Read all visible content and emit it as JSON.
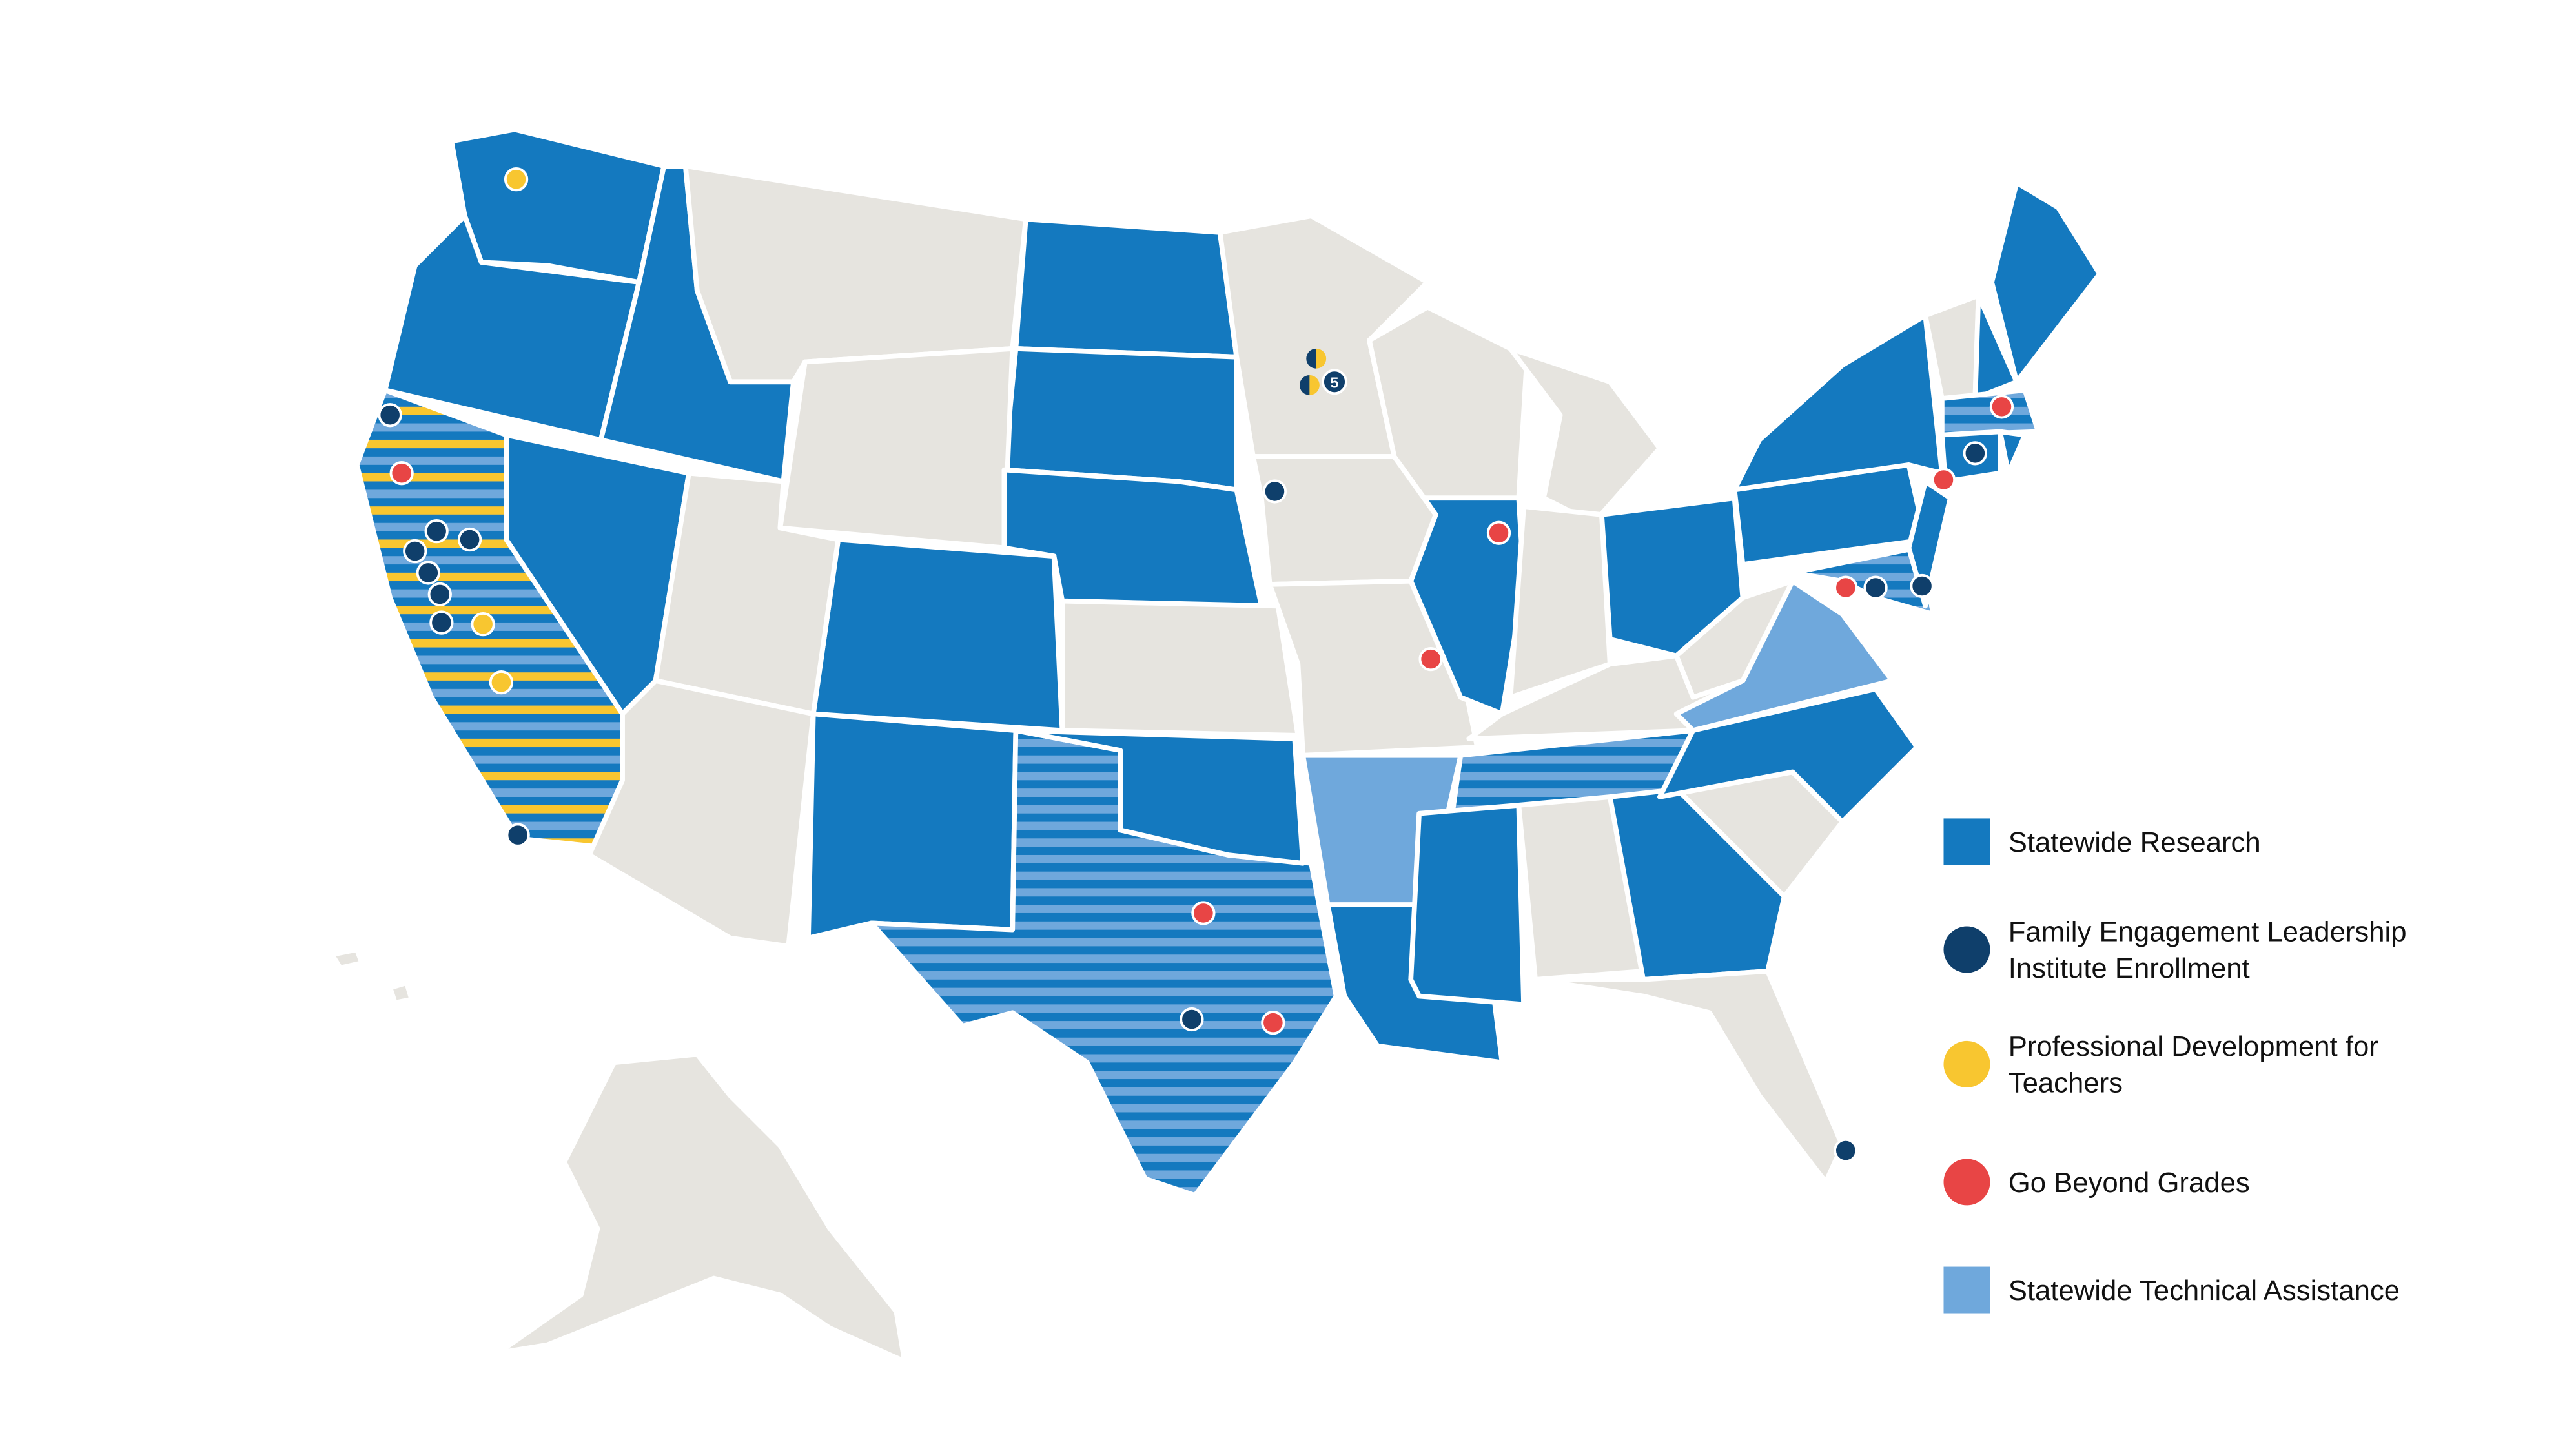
{
  "legend": [
    {
      "label": [
        "Statewide Research"
      ]
    },
    {
      "label": [
        "Family Engagement Leadership",
        "Institute Enrollment"
      ]
    },
    {
      "label": [
        "Professional Development for",
        "Teachers"
      ]
    },
    {
      "label": [
        "Go Beyond Grades"
      ]
    },
    {
      "label": [
        "Statewide Technical Assistance"
      ]
    }
  ],
  "badge_label": "5"
}
